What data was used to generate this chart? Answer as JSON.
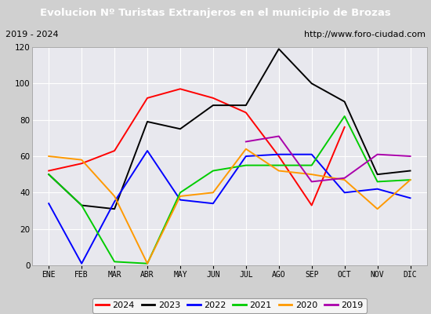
{
  "title": "Evolucion Nº Turistas Extranjeros en el municipio de Brozas",
  "subtitle_left": "2019 - 2024",
  "subtitle_right": "http://www.foro-ciudad.com",
  "months": [
    "ENE",
    "FEB",
    "MAR",
    "ABR",
    "MAY",
    "JUN",
    "JUL",
    "AGO",
    "SEP",
    "OCT",
    "NOV",
    "DIC"
  ],
  "series": {
    "2024": [
      52,
      56,
      63,
      92,
      97,
      92,
      84,
      60,
      33,
      76,
      null,
      null
    ],
    "2023": [
      50,
      33,
      31,
      79,
      75,
      88,
      88,
      119,
      100,
      90,
      50,
      52
    ],
    "2022": [
      34,
      1,
      35,
      63,
      36,
      34,
      60,
      61,
      61,
      40,
      42,
      37
    ],
    "2021": [
      50,
      33,
      2,
      1,
      40,
      52,
      55,
      55,
      55,
      82,
      46,
      47
    ],
    "2020": [
      60,
      58,
      38,
      1,
      38,
      40,
      64,
      52,
      50,
      47,
      31,
      47
    ],
    "2019": [
      null,
      null,
      null,
      null,
      null,
      null,
      68,
      71,
      46,
      48,
      61,
      60
    ]
  },
  "colors": {
    "2024": "#ff0000",
    "2023": "#000000",
    "2022": "#0000ff",
    "2021": "#00cc00",
    "2020": "#ff9900",
    "2019": "#aa00aa"
  },
  "ylim": [
    0,
    120
  ],
  "yticks": [
    0,
    20,
    40,
    60,
    80,
    100,
    120
  ],
  "title_bg": "#4472c4",
  "title_color": "#ffffff",
  "subtitle_bg": "#ffffff",
  "axes_bg": "#e8e8ee",
  "grid_color": "#ffffff"
}
